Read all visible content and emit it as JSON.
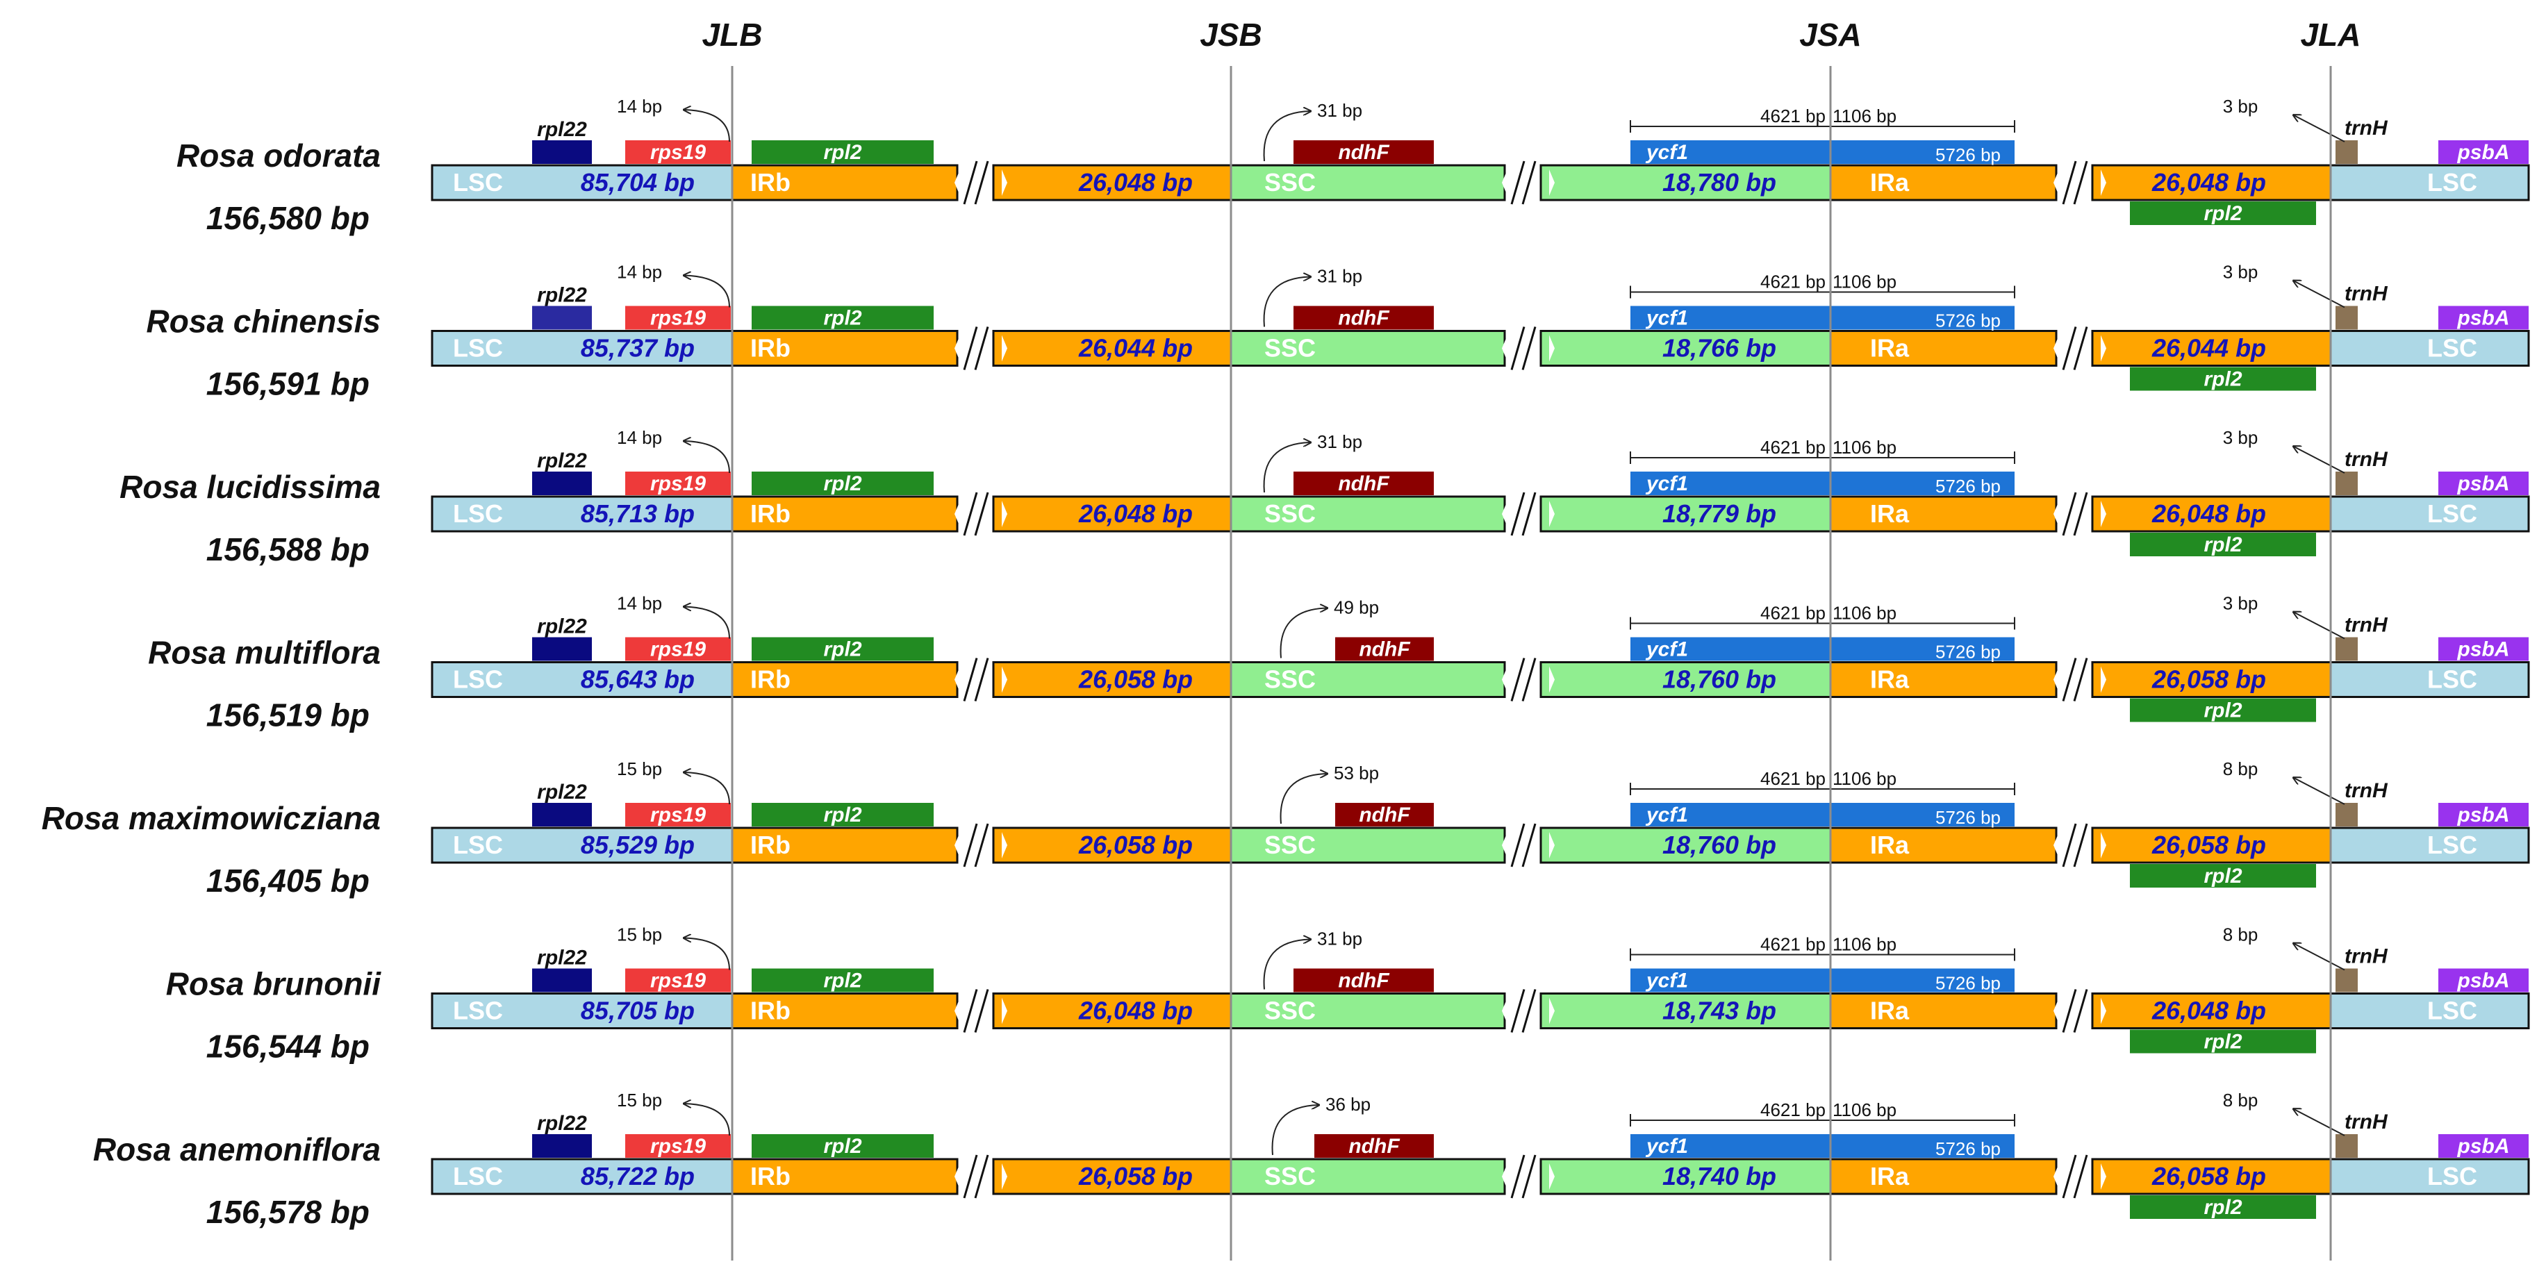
{
  "junctions": [
    "JLB",
    "JSB",
    "JSA",
    "JLA"
  ],
  "region_names": {
    "lsc": "LSC",
    "irb": "IRb",
    "ssc": "SSC",
    "ira": "IRa"
  },
  "gene_names": {
    "rpl22": "rpl22",
    "rps19": "rps19",
    "rpl2": "rpl2",
    "ndhF": "ndhF",
    "ycf1": "ycf1",
    "trnH": "trnH",
    "psbA": "psbA"
  },
  "colors": {
    "lsc": "#add8e6",
    "ir": "#ffa500",
    "ssc": "#90ee90",
    "rpl22": "#0a0a80",
    "rps19": "#ee3a3a",
    "rpl2": "#228b22",
    "ndhF": "#8b0000",
    "ycf1": "#1e74d6",
    "trnH": "#8b7355",
    "psbA": "#9933ee",
    "junction_line": "#8c8c8c"
  },
  "ycf1_labels": {
    "left": "4621 bp",
    "mid": "1106 bp",
    "right": "5726 bp"
  },
  "species": [
    {
      "name": "Rosa odorata",
      "size": "156,580 bp",
      "lsc": "85,704 bp",
      "irb": "26,048 bp",
      "ssc": "18,780 bp",
      "ira": "26,048 bp",
      "rps19_bp": "14 bp",
      "ndhF_bp": "31 bp",
      "ndhF_offset": 0,
      "trnH_bp": "3 bp",
      "rpl22_light": false
    },
    {
      "name": "Rosa chinensis",
      "size": "156,591 bp",
      "lsc": "85,737 bp",
      "irb": "26,044 bp",
      "ssc": "18,766 bp",
      "ira": "26,044 bp",
      "rps19_bp": "14 bp",
      "ndhF_bp": "31 bp",
      "ndhF_offset": 0,
      "trnH_bp": "3 bp",
      "rpl22_light": true
    },
    {
      "name": "Rosa lucidissima",
      "size": "156,588 bp",
      "lsc": "85,713 bp",
      "irb": "26,048 bp",
      "ssc": "18,779 bp",
      "ira": "26,048 bp",
      "rps19_bp": "14 bp",
      "ndhF_bp": "31 bp",
      "ndhF_offset": 0,
      "trnH_bp": "3 bp",
      "rpl22_light": false
    },
    {
      "name": "Rosa multiflora",
      "size": "156,519 bp",
      "lsc": "85,643 bp",
      "irb": "26,058 bp",
      "ssc": "18,760 bp",
      "ira": "26,058 bp",
      "rps19_bp": "14 bp",
      "ndhF_bp": "49 bp",
      "ndhF_offset": 1,
      "trnH_bp": "3 bp",
      "rpl22_light": false
    },
    {
      "name": "Rosa maximowicziana",
      "size": "156,405 bp",
      "lsc": "85,529 bp",
      "irb": "26,058 bp",
      "ssc": "18,760 bp",
      "ira": "26,058 bp",
      "rps19_bp": "15 bp",
      "ndhF_bp": "53 bp",
      "ndhF_offset": 1,
      "trnH_bp": "8 bp",
      "rpl22_light": false
    },
    {
      "name": "Rosa brunonii",
      "size": "156,544 bp",
      "lsc": "85,705 bp",
      "irb": "26,048 bp",
      "ssc": "18,743 bp",
      "ira": "26,048 bp",
      "rps19_bp": "15 bp",
      "ndhF_bp": "31 bp",
      "ndhF_offset": 0,
      "trnH_bp": "8 bp",
      "rpl22_light": false
    },
    {
      "name": "Rosa anemoniflora",
      "size": "156,578 bp",
      "lsc": "85,722 bp",
      "irb": "26,058 bp",
      "ssc": "18,740 bp",
      "ira": "26,058 bp",
      "rps19_bp": "15 bp",
      "ndhF_bp": "36 bp",
      "ndhF_offset": 0.5,
      "trnH_bp": "8 bp",
      "rpl22_light": false
    }
  ]
}
